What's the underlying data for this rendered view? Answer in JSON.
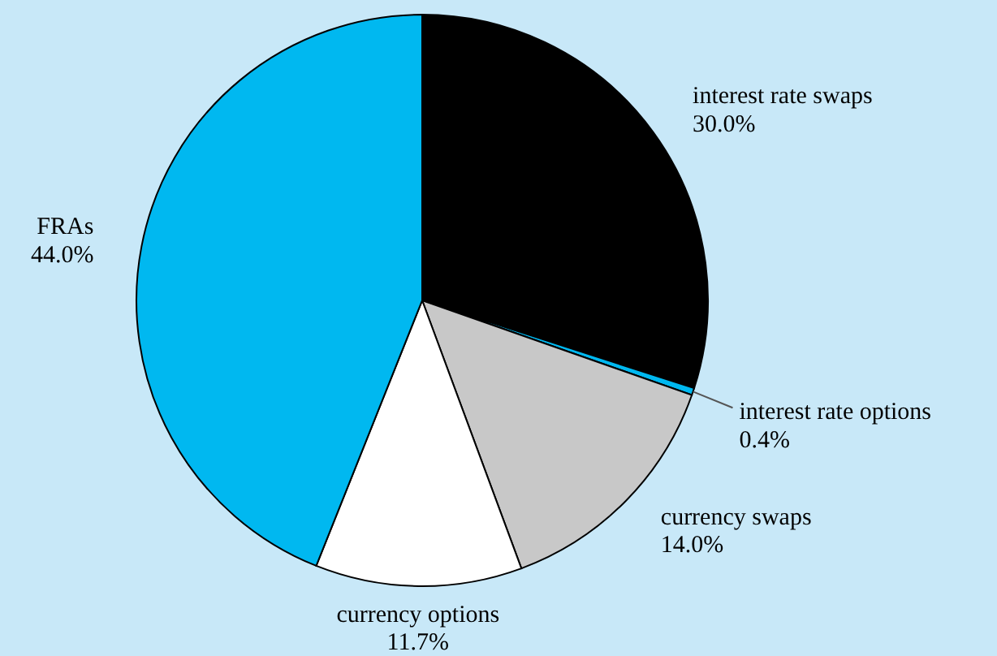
{
  "chart_data": {
    "type": "pie",
    "categories": [
      "interest rate swaps",
      "interest rate options",
      "currency swaps",
      "currency options",
      "FRAs"
    ],
    "values": [
      30.0,
      0.4,
      14.0,
      11.7,
      44.0
    ],
    "value_labels": [
      "30.0%",
      "0.4%",
      "14.0%",
      "11.7%",
      "44.0%"
    ],
    "colors": [
      "#000000",
      "#00b8f0",
      "#c8c8c8",
      "#ffffff",
      "#00b8f0"
    ]
  }
}
